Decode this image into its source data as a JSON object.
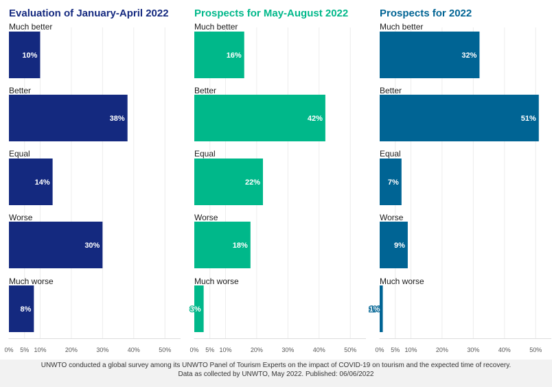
{
  "chart_data": {
    "type": "bar",
    "orientation": "horizontal",
    "categories": [
      "Much better",
      "Better",
      "Equal",
      "Worse",
      "Much worse"
    ],
    "xlim": [
      0,
      55
    ],
    "xticks": [
      0,
      5,
      10,
      20,
      30,
      40,
      50
    ],
    "xtick_suffix": "%",
    "grid": true,
    "panels": [
      {
        "title": "Evaluation of January-April 2022",
        "color": "#14297f",
        "values": [
          10,
          38,
          14,
          30,
          8
        ],
        "labels": [
          "10%",
          "38%",
          "14%",
          "30%",
          "8%"
        ]
      },
      {
        "title": "Prospects for May-August 2022",
        "color": "#00b88a",
        "values": [
          16,
          42,
          22,
          18,
          3
        ],
        "labels": [
          "16%",
          "42%",
          "22%",
          "18%",
          "3%"
        ]
      },
      {
        "title": "Prospects for 2022",
        "color": "#006494",
        "values": [
          32,
          51,
          7,
          9,
          1
        ],
        "labels": [
          "32%",
          "51%",
          "7%",
          "9%",
          "1%"
        ]
      }
    ]
  },
  "footer": {
    "line1": "UNWTO conducted a global survey among its UNWTO Panel of Tourism Experts on the impact of COVID-19 on tourism and the expected time of recovery.",
    "line2": "Data as collected by UNWTO, May 2022. Published: 06/06/2022"
  }
}
